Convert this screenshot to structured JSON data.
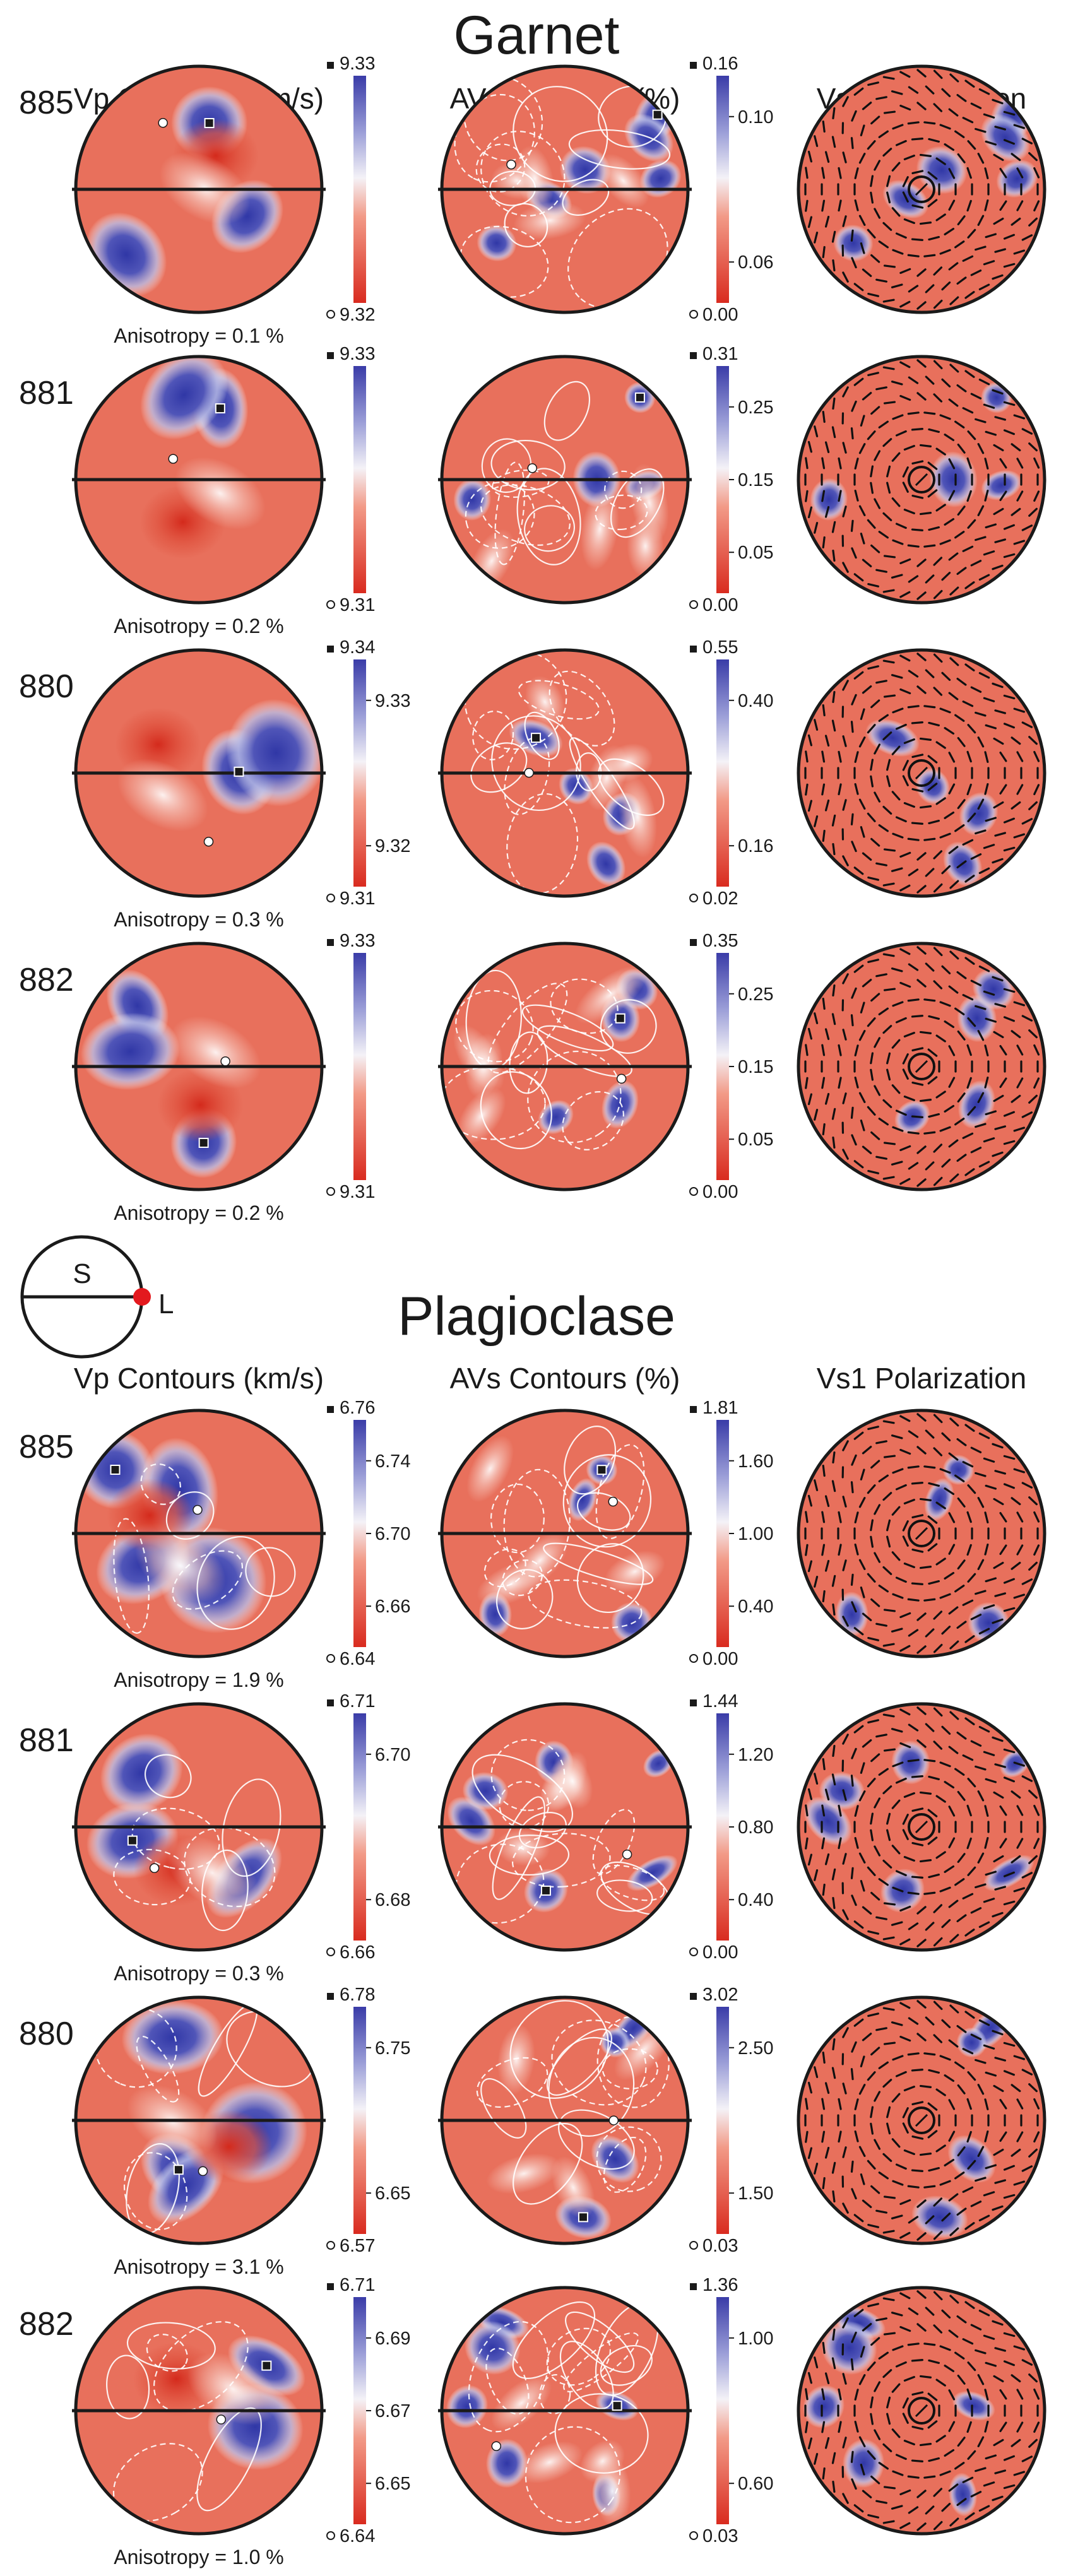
{
  "sections": [
    {
      "title": "Garnet",
      "columns": [
        "Vp Contours (km/s)",
        "AVs Contours (%)",
        "Vs1 Polarization"
      ],
      "rows": [
        {
          "sample": "885",
          "anisotropy": "Anisotropy = 0.1 %",
          "vp_scale": [
            "9.33",
            "9.32"
          ],
          "vp_mid": [],
          "avs_scale": [
            "0.16",
            "0.00"
          ],
          "avs_mid": [
            "0.10",
            "0.06"
          ]
        },
        {
          "sample": "881",
          "anisotropy": "Anisotropy = 0.2 %",
          "vp_scale": [
            "9.33",
            "9.31"
          ],
          "vp_mid": [],
          "avs_scale": [
            "0.31",
            "0.00"
          ],
          "avs_mid": [
            "0.25",
            "0.15",
            "0.05"
          ]
        },
        {
          "sample": "880",
          "anisotropy": "Anisotropy = 0.3 %",
          "vp_scale": [
            "9.34",
            "9.31"
          ],
          "vp_mid": [
            "9.33",
            "9.32"
          ],
          "avs_scale": [
            "0.55",
            "0.02"
          ],
          "avs_mid": [
            "0.40",
            "0.16"
          ]
        },
        {
          "sample": "882",
          "anisotropy": "Anisotropy = 0.2 %",
          "vp_scale": [
            "9.33",
            "9.31"
          ],
          "vp_mid": [],
          "avs_scale": [
            "0.35",
            "0.00"
          ],
          "avs_mid": [
            "0.25",
            "0.15",
            "0.05"
          ]
        }
      ]
    },
    {
      "title": "Plagioclase",
      "columns": [
        "Vp Contours (km/s)",
        "AVs Contours (%)",
        "Vs1 Polarization"
      ],
      "rows": [
        {
          "sample": "885",
          "anisotropy": "Anisotropy = 1.9 %",
          "vp_scale": [
            "6.76",
            "6.64"
          ],
          "vp_mid": [
            "6.74",
            "6.70",
            "6.66"
          ],
          "avs_scale": [
            "1.81",
            "0.00"
          ],
          "avs_mid": [
            "1.60",
            "1.00",
            "0.40"
          ]
        },
        {
          "sample": "881",
          "anisotropy": "Anisotropy = 0.3 %",
          "vp_scale": [
            "6.71",
            "6.66"
          ],
          "vp_mid": [
            "6.70",
            "6.68"
          ],
          "avs_scale": [
            "1.44",
            "0.00"
          ],
          "avs_mid": [
            "1.20",
            "0.80",
            "0.40"
          ]
        },
        {
          "sample": "880",
          "anisotropy": "Anisotropy = 3.1 %",
          "vp_scale": [
            "6.78",
            "6.57"
          ],
          "vp_mid": [
            "6.75",
            "6.65"
          ],
          "avs_scale": [
            "3.02",
            "0.03"
          ],
          "avs_mid": [
            "2.50",
            "1.50"
          ]
        },
        {
          "sample": "882",
          "anisotropy": "Anisotropy = 1.0 %",
          "vp_scale": [
            "6.71",
            "6.64"
          ],
          "vp_mid": [
            "6.69",
            "6.67",
            "6.65"
          ],
          "avs_scale": [
            "1.36",
            "0.03"
          ],
          "avs_mid": [
            "1.00",
            "0.60"
          ]
        }
      ]
    }
  ],
  "legend": {
    "foliation": "S",
    "lineation": "L"
  },
  "colors": {
    "high": "#3a3ca8",
    "low": "#d92b1f",
    "mid": "#ffffff",
    "stroke": "#1a1a1a",
    "lineation_dot": "#e3191e"
  }
}
